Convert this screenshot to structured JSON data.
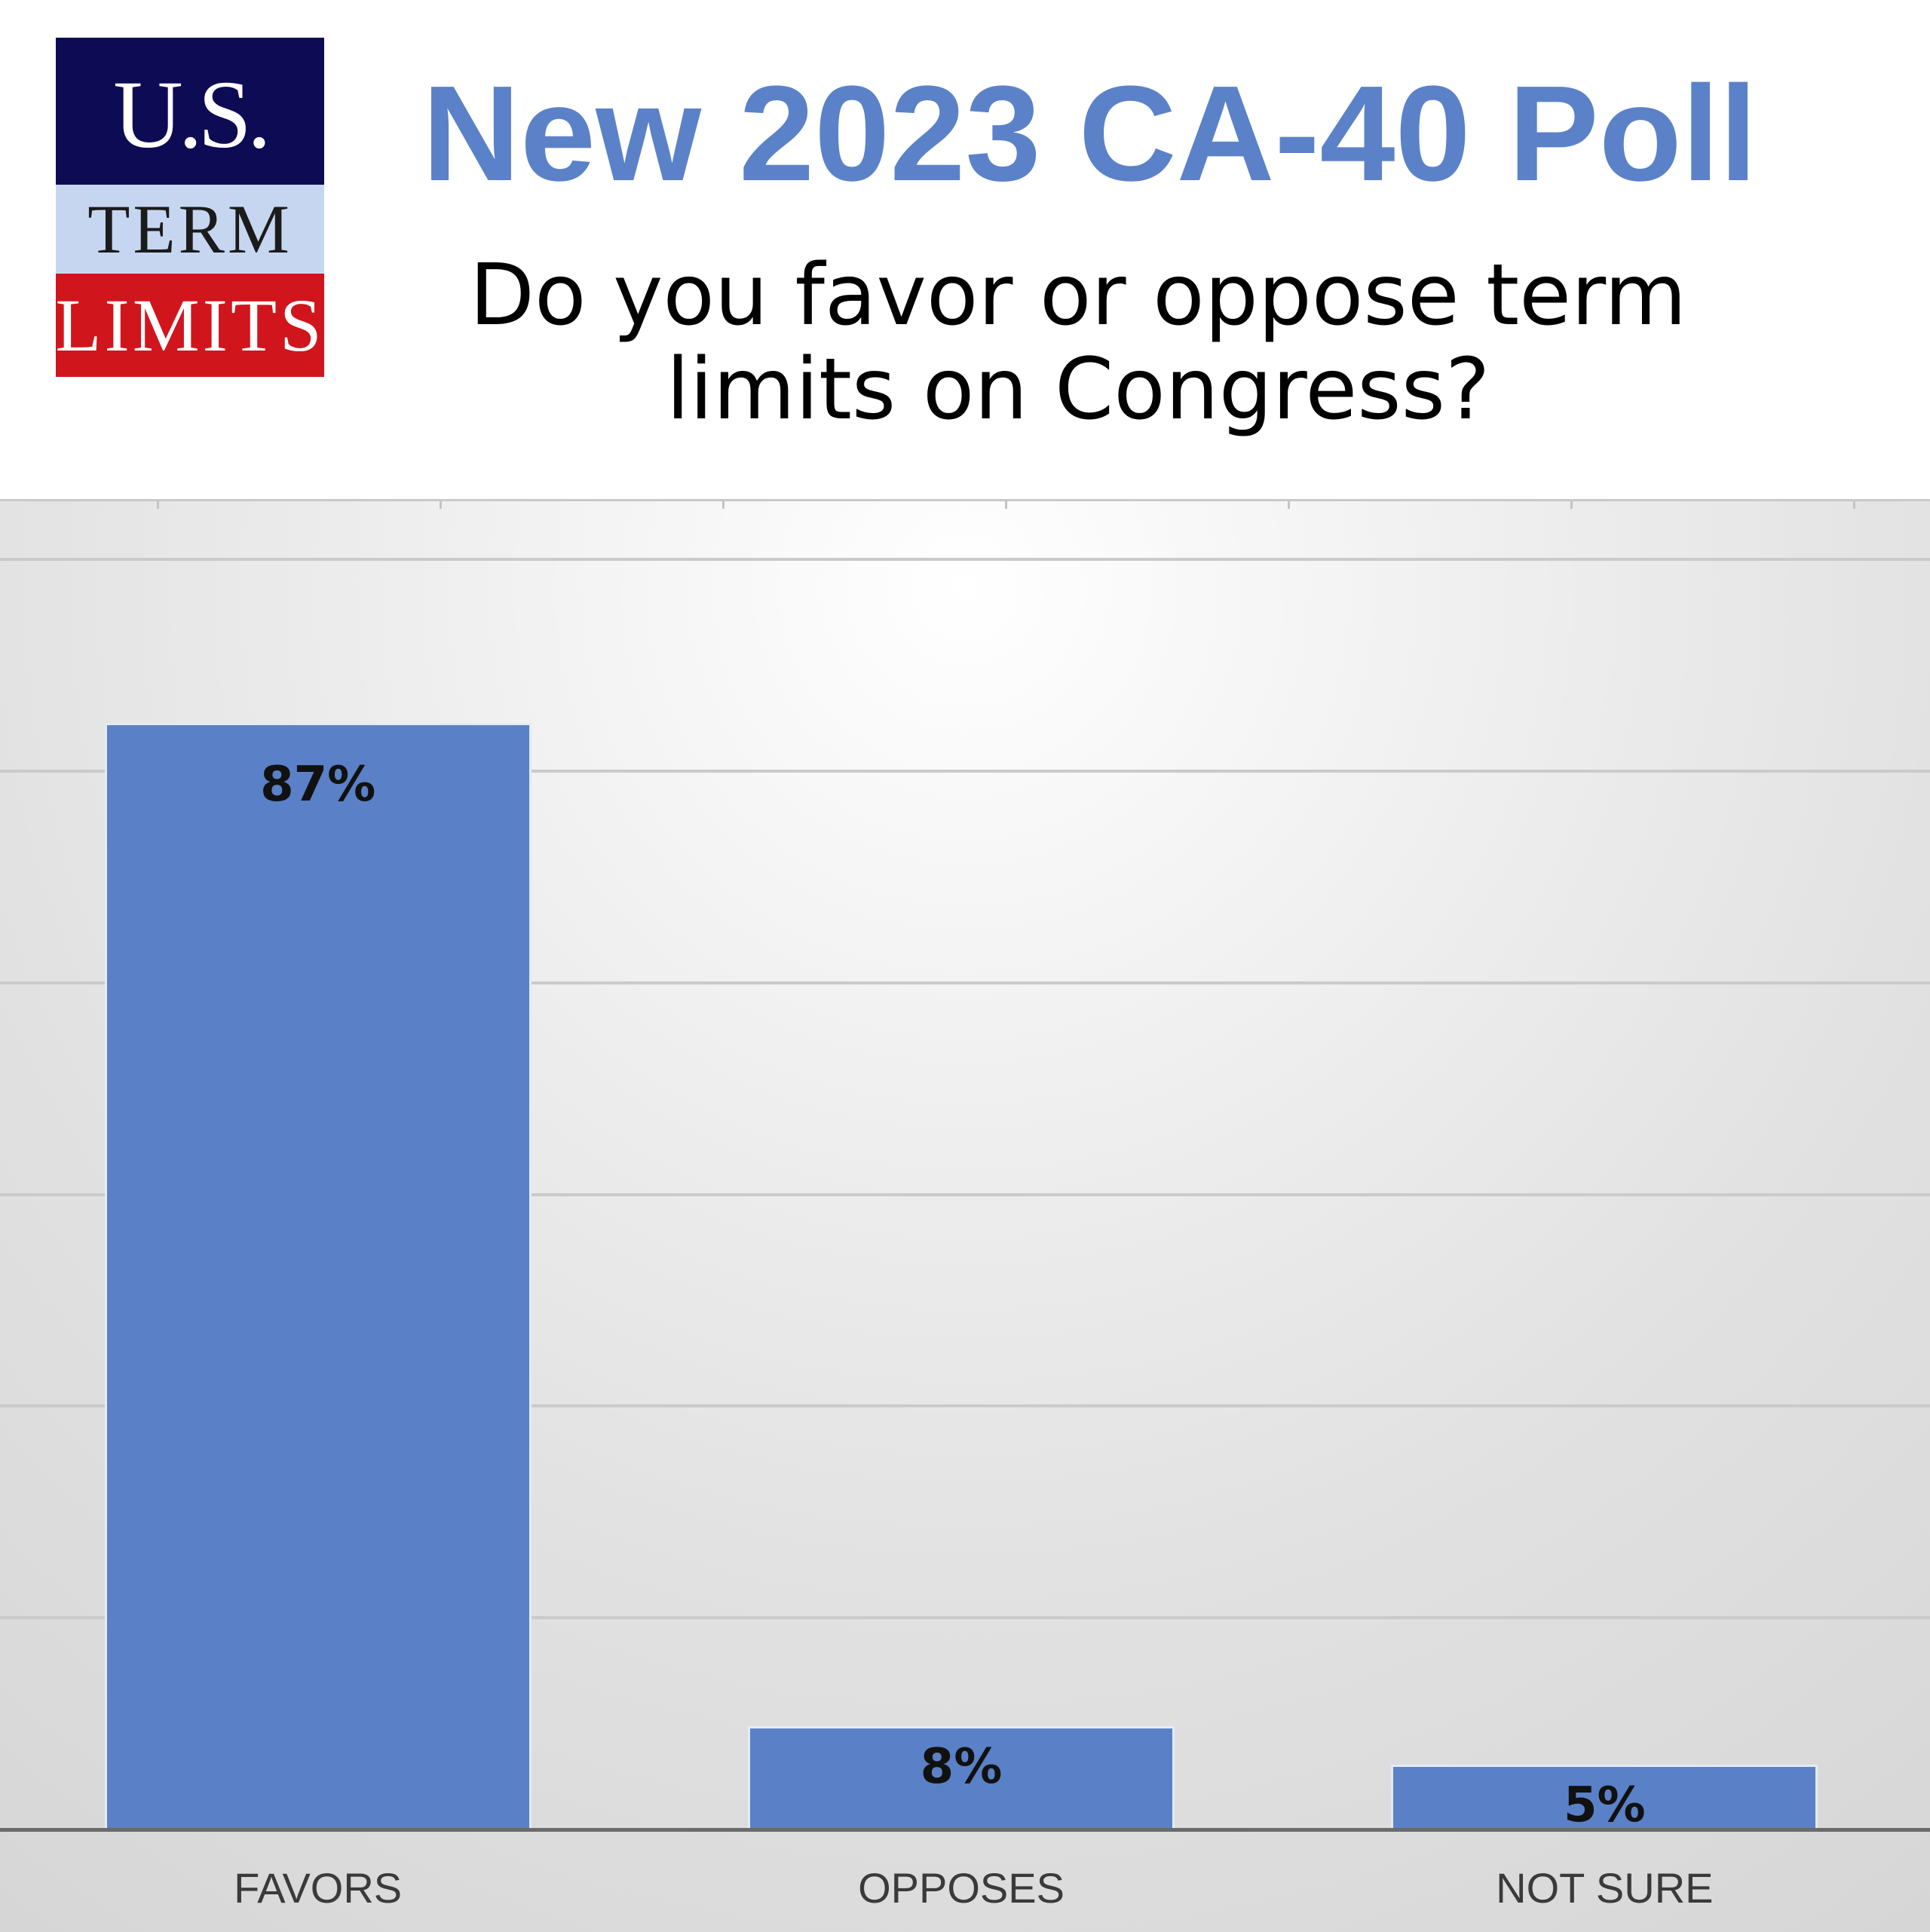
{
  "logo": {
    "line1": "U.S.",
    "line2": "TERM",
    "line3": "LIMITS"
  },
  "title": "New 2023 CA-40 Poll",
  "subtitle": "Do you favor or oppose term limits on Congress?",
  "colors": {
    "title": "#5b82c8",
    "bar": "#5a81c7",
    "logo_navy": "#0e0b55",
    "logo_light_blue": "#c7d6f0",
    "logo_red": "#d1151c"
  },
  "chart_data": {
    "type": "bar",
    "title": "New 2023 CA-40 Poll",
    "subtitle": "Do you favor or oppose term limits on Congress?",
    "categories": [
      "FAVORS",
      "OPPOSES",
      "NOT SURE"
    ],
    "values": [
      87,
      8,
      5
    ],
    "value_labels": [
      "87%",
      "8%",
      "5%"
    ],
    "unit": "%",
    "ylim": [
      0,
      105
    ],
    "grid": true,
    "legend": "none"
  }
}
